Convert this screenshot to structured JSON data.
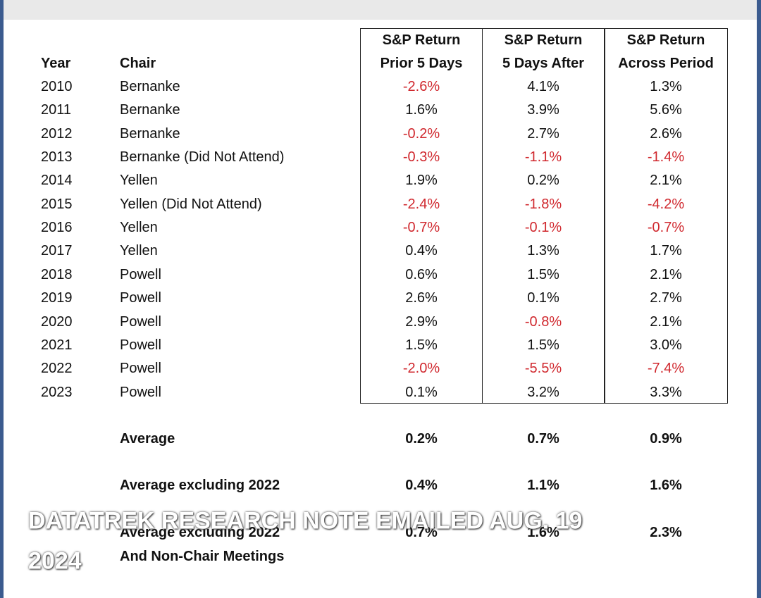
{
  "table": {
    "header": [
      [
        "Year"
      ],
      [
        "Chair"
      ],
      [
        "S&P Return",
        "Prior 5 Days"
      ],
      [
        "S&P Return",
        "5 Days After"
      ],
      [
        "S&P Return",
        "Across Period"
      ]
    ],
    "rows": [
      [
        "2010",
        "Bernanke",
        "-2.6%",
        "4.1%",
        "1.3%"
      ],
      [
        "2011",
        "Bernanke",
        "1.6%",
        "3.9%",
        "5.6%"
      ],
      [
        "2012",
        "Bernanke",
        "-0.2%",
        "2.7%",
        "2.6%"
      ],
      [
        "2013",
        "Bernanke (Did Not Attend)",
        "-0.3%",
        "-1.1%",
        "-1.4%"
      ],
      [
        "2014",
        "Yellen",
        "1.9%",
        "0.2%",
        "2.1%"
      ],
      [
        "2015",
        "Yellen (Did Not Attend)",
        "-2.4%",
        "-1.8%",
        "-4.2%"
      ],
      [
        "2016",
        "Yellen",
        "-0.7%",
        "-0.1%",
        "-0.7%"
      ],
      [
        "2017",
        "Yellen",
        "0.4%",
        "1.3%",
        "1.7%"
      ],
      [
        "2018",
        "Powell",
        "0.6%",
        "1.5%",
        "2.1%"
      ],
      [
        "2019",
        "Powell",
        "2.6%",
        "0.1%",
        "2.7%"
      ],
      [
        "2020",
        "Powell",
        "2.9%",
        "-0.8%",
        "2.1%"
      ],
      [
        "2021",
        "Powell",
        "1.5%",
        "1.5%",
        "3.0%"
      ],
      [
        "2022",
        "Powell",
        "-2.0%",
        "-5.5%",
        "-7.4%"
      ],
      [
        "2023",
        "Powell",
        "0.1%",
        "3.2%",
        "3.3%"
      ]
    ],
    "summary": [
      {
        "label": [
          "Average"
        ],
        "values": [
          "0.2%",
          "0.7%",
          "0.9%"
        ]
      },
      {
        "label": [
          "Average excluding 2022"
        ],
        "values": [
          "0.4%",
          "1.1%",
          "1.6%"
        ]
      },
      {
        "label": [
          "Average excluding 2022",
          "And Non-Chair Meetings"
        ],
        "values": [
          "0.7%",
          "1.6%",
          "2.3%"
        ]
      }
    ]
  },
  "watermark": [
    "DATATREK RESEARCH NOTE EMAILED AUG. 19",
    "2024"
  ]
}
